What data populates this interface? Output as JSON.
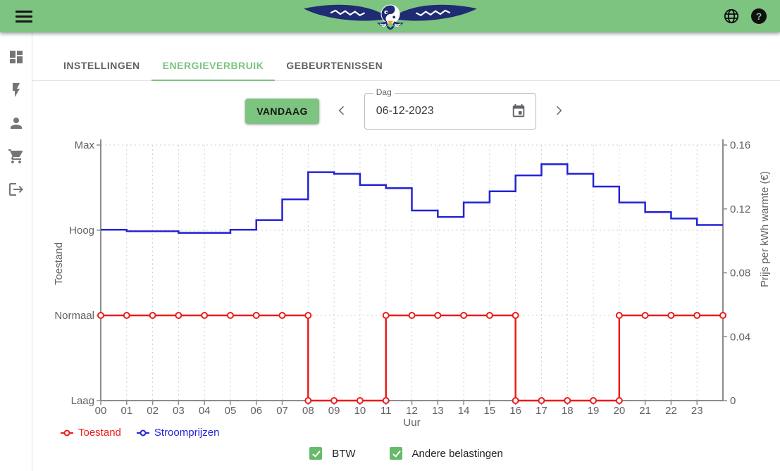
{
  "header": {
    "icons": {
      "menu": "hamburger-icon",
      "logo": "swallow-yin-yang-logo",
      "language": "globe-icon",
      "help": "question-mark-icon"
    }
  },
  "sidebar": {
    "items": [
      {
        "icon": "dashboard-icon"
      },
      {
        "icon": "bolt-icon"
      },
      {
        "icon": "person-icon"
      },
      {
        "icon": "shopping-cart-icon"
      },
      {
        "icon": "logout-icon"
      }
    ]
  },
  "tabs": [
    {
      "label": "INSTELLINGEN",
      "active": false
    },
    {
      "label": "ENERGIEVERBRUIK",
      "active": true
    },
    {
      "label": "GEBEURTENISSEN",
      "active": false
    }
  ],
  "controls": {
    "today_button": "VANDAAG",
    "prev_icon": "chevron-left-icon",
    "next_icon": "chevron-right-icon",
    "date_field": {
      "label": "Dag",
      "value": "06-12-2023",
      "icon": "calendar-icon"
    }
  },
  "chart_data": {
    "type": "line",
    "x_categories": [
      "00",
      "01",
      "02",
      "03",
      "04",
      "05",
      "06",
      "07",
      "08",
      "09",
      "10",
      "11",
      "12",
      "13",
      "14",
      "15",
      "16",
      "17",
      "18",
      "19",
      "20",
      "21",
      "22",
      "23"
    ],
    "xlabel": "Uur",
    "grid": true,
    "legend_position": "bottom-left",
    "left_axis": {
      "title": "Toestand",
      "categories": [
        "Laag",
        "Normaal",
        "Hoog",
        "Max"
      ]
    },
    "right_axis": {
      "title": "Prijs per kWh warmte (€)",
      "ticks": [
        0,
        0.04,
        0.08,
        0.12,
        0.16
      ],
      "range": [
        0,
        0.16
      ]
    },
    "series": [
      {
        "name": "Toestand",
        "axis": "left",
        "color": "#EB1C1C",
        "step": true,
        "markers": true,
        "values": [
          "Normaal",
          "Normaal",
          "Normaal",
          "Normaal",
          "Normaal",
          "Normaal",
          "Normaal",
          "Normaal",
          "Laag",
          "Laag",
          "Laag",
          "Normaal",
          "Normaal",
          "Normaal",
          "Normaal",
          "Normaal",
          "Laag",
          "Laag",
          "Laag",
          "Laag",
          "Normaal",
          "Normaal",
          "Normaal",
          "Normaal"
        ]
      },
      {
        "name": "Stroomprijzen",
        "axis": "right",
        "color": "#2323D6",
        "step": true,
        "markers": false,
        "values": [
          0.107,
          0.106,
          0.106,
          0.105,
          0.105,
          0.107,
          0.113,
          0.126,
          0.143,
          0.142,
          0.135,
          0.133,
          0.119,
          0.115,
          0.124,
          0.131,
          0.141,
          0.148,
          0.142,
          0.134,
          0.124,
          0.118,
          0.114,
          0.11
        ]
      }
    ]
  },
  "legend": [
    {
      "label": "Toestand",
      "color": "#EB1C1C"
    },
    {
      "label": "Stroomprijzen",
      "color": "#2323D6"
    }
  ],
  "filters": [
    {
      "label": "BTW",
      "checked": true
    },
    {
      "label": "Andere belastingen",
      "checked": true
    }
  ],
  "colors": {
    "header_green": "#7CC47F",
    "checkbox_green": "#66BB6A",
    "axis_gray": "#8C8C8C",
    "grid_gray": "#CFCFCF"
  }
}
